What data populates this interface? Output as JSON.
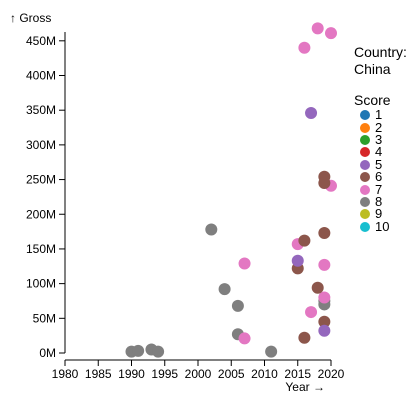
{
  "chart_data": {
    "type": "scatter",
    "ylabel": "↑ Gross",
    "xlabel": "Year →",
    "xlim": [
      1980,
      2020
    ],
    "ylim": [
      0,
      480000000
    ],
    "x_ticks": [
      1980,
      1985,
      1990,
      1995,
      2000,
      2005,
      2010,
      2015,
      2020
    ],
    "y_ticks": [
      0,
      50000000,
      100000000,
      150000000,
      200000000,
      250000000,
      300000000,
      350000000,
      400000000,
      450000000
    ],
    "y_tick_labels": [
      "0M",
      "50M",
      "100M",
      "150M",
      "200M",
      "250M",
      "300M",
      "350M",
      "400M",
      "450M"
    ],
    "grid": false,
    "legend": {
      "position": "right",
      "title": "Country:",
      "subtitle": "China",
      "score_title": "Score",
      "items": [
        {
          "label": "1",
          "color": "#1f77b4"
        },
        {
          "label": "2",
          "color": "#ff7f0e"
        },
        {
          "label": "3",
          "color": "#2ca02c"
        },
        {
          "label": "4",
          "color": "#d62728"
        },
        {
          "label": "5",
          "color": "#9467bd"
        },
        {
          "label": "6",
          "color": "#8c564b"
        },
        {
          "label": "7",
          "color": "#e377c2"
        },
        {
          "label": "8",
          "color": "#7f7f7f"
        },
        {
          "label": "9",
          "color": "#bcbd22"
        },
        {
          "label": "10",
          "color": "#17becf"
        }
      ]
    },
    "points": [
      {
        "year": 1990,
        "gross": 2000000,
        "score": 8
      },
      {
        "year": 1991,
        "gross": 3000000,
        "score": 8
      },
      {
        "year": 1993,
        "gross": 5000000,
        "score": 8
      },
      {
        "year": 1994,
        "gross": 2000000,
        "score": 8
      },
      {
        "year": 2002,
        "gross": 178000000,
        "score": 8
      },
      {
        "year": 2004,
        "gross": 92000000,
        "score": 8
      },
      {
        "year": 2006,
        "gross": 68000000,
        "score": 8
      },
      {
        "year": 2006,
        "gross": 27000000,
        "score": 8
      },
      {
        "year": 2011,
        "gross": 2000000,
        "score": 8
      },
      {
        "year": 2019,
        "gross": 75000000,
        "score": 8
      },
      {
        "year": 2019,
        "gross": 70000000,
        "score": 8
      },
      {
        "year": 2007,
        "gross": 129000000,
        "score": 7
      },
      {
        "year": 2007,
        "gross": 21000000,
        "score": 7
      },
      {
        "year": 2015,
        "gross": 157000000,
        "score": 7
      },
      {
        "year": 2016,
        "gross": 440000000,
        "score": 7
      },
      {
        "year": 2018,
        "gross": 468000000,
        "score": 7
      },
      {
        "year": 2020,
        "gross": 461000000,
        "score": 7
      },
      {
        "year": 2020,
        "gross": 241000000,
        "score": 7
      },
      {
        "year": 2019,
        "gross": 127000000,
        "score": 7
      },
      {
        "year": 2019,
        "gross": 80000000,
        "score": 7
      },
      {
        "year": 2017,
        "gross": 59000000,
        "score": 7
      },
      {
        "year": 2016,
        "gross": 162000000,
        "score": 6
      },
      {
        "year": 2015,
        "gross": 122000000,
        "score": 6
      },
      {
        "year": 2019,
        "gross": 254000000,
        "score": 6
      },
      {
        "year": 2019,
        "gross": 245000000,
        "score": 6
      },
      {
        "year": 2019,
        "gross": 173000000,
        "score": 6
      },
      {
        "year": 2018,
        "gross": 94000000,
        "score": 6
      },
      {
        "year": 2019,
        "gross": 45000000,
        "score": 6
      },
      {
        "year": 2016,
        "gross": 22000000,
        "score": 6
      },
      {
        "year": 2017,
        "gross": 346000000,
        "score": 5
      },
      {
        "year": 2015,
        "gross": 133000000,
        "score": 5
      },
      {
        "year": 2019,
        "gross": 32000000,
        "score": 5
      }
    ]
  }
}
